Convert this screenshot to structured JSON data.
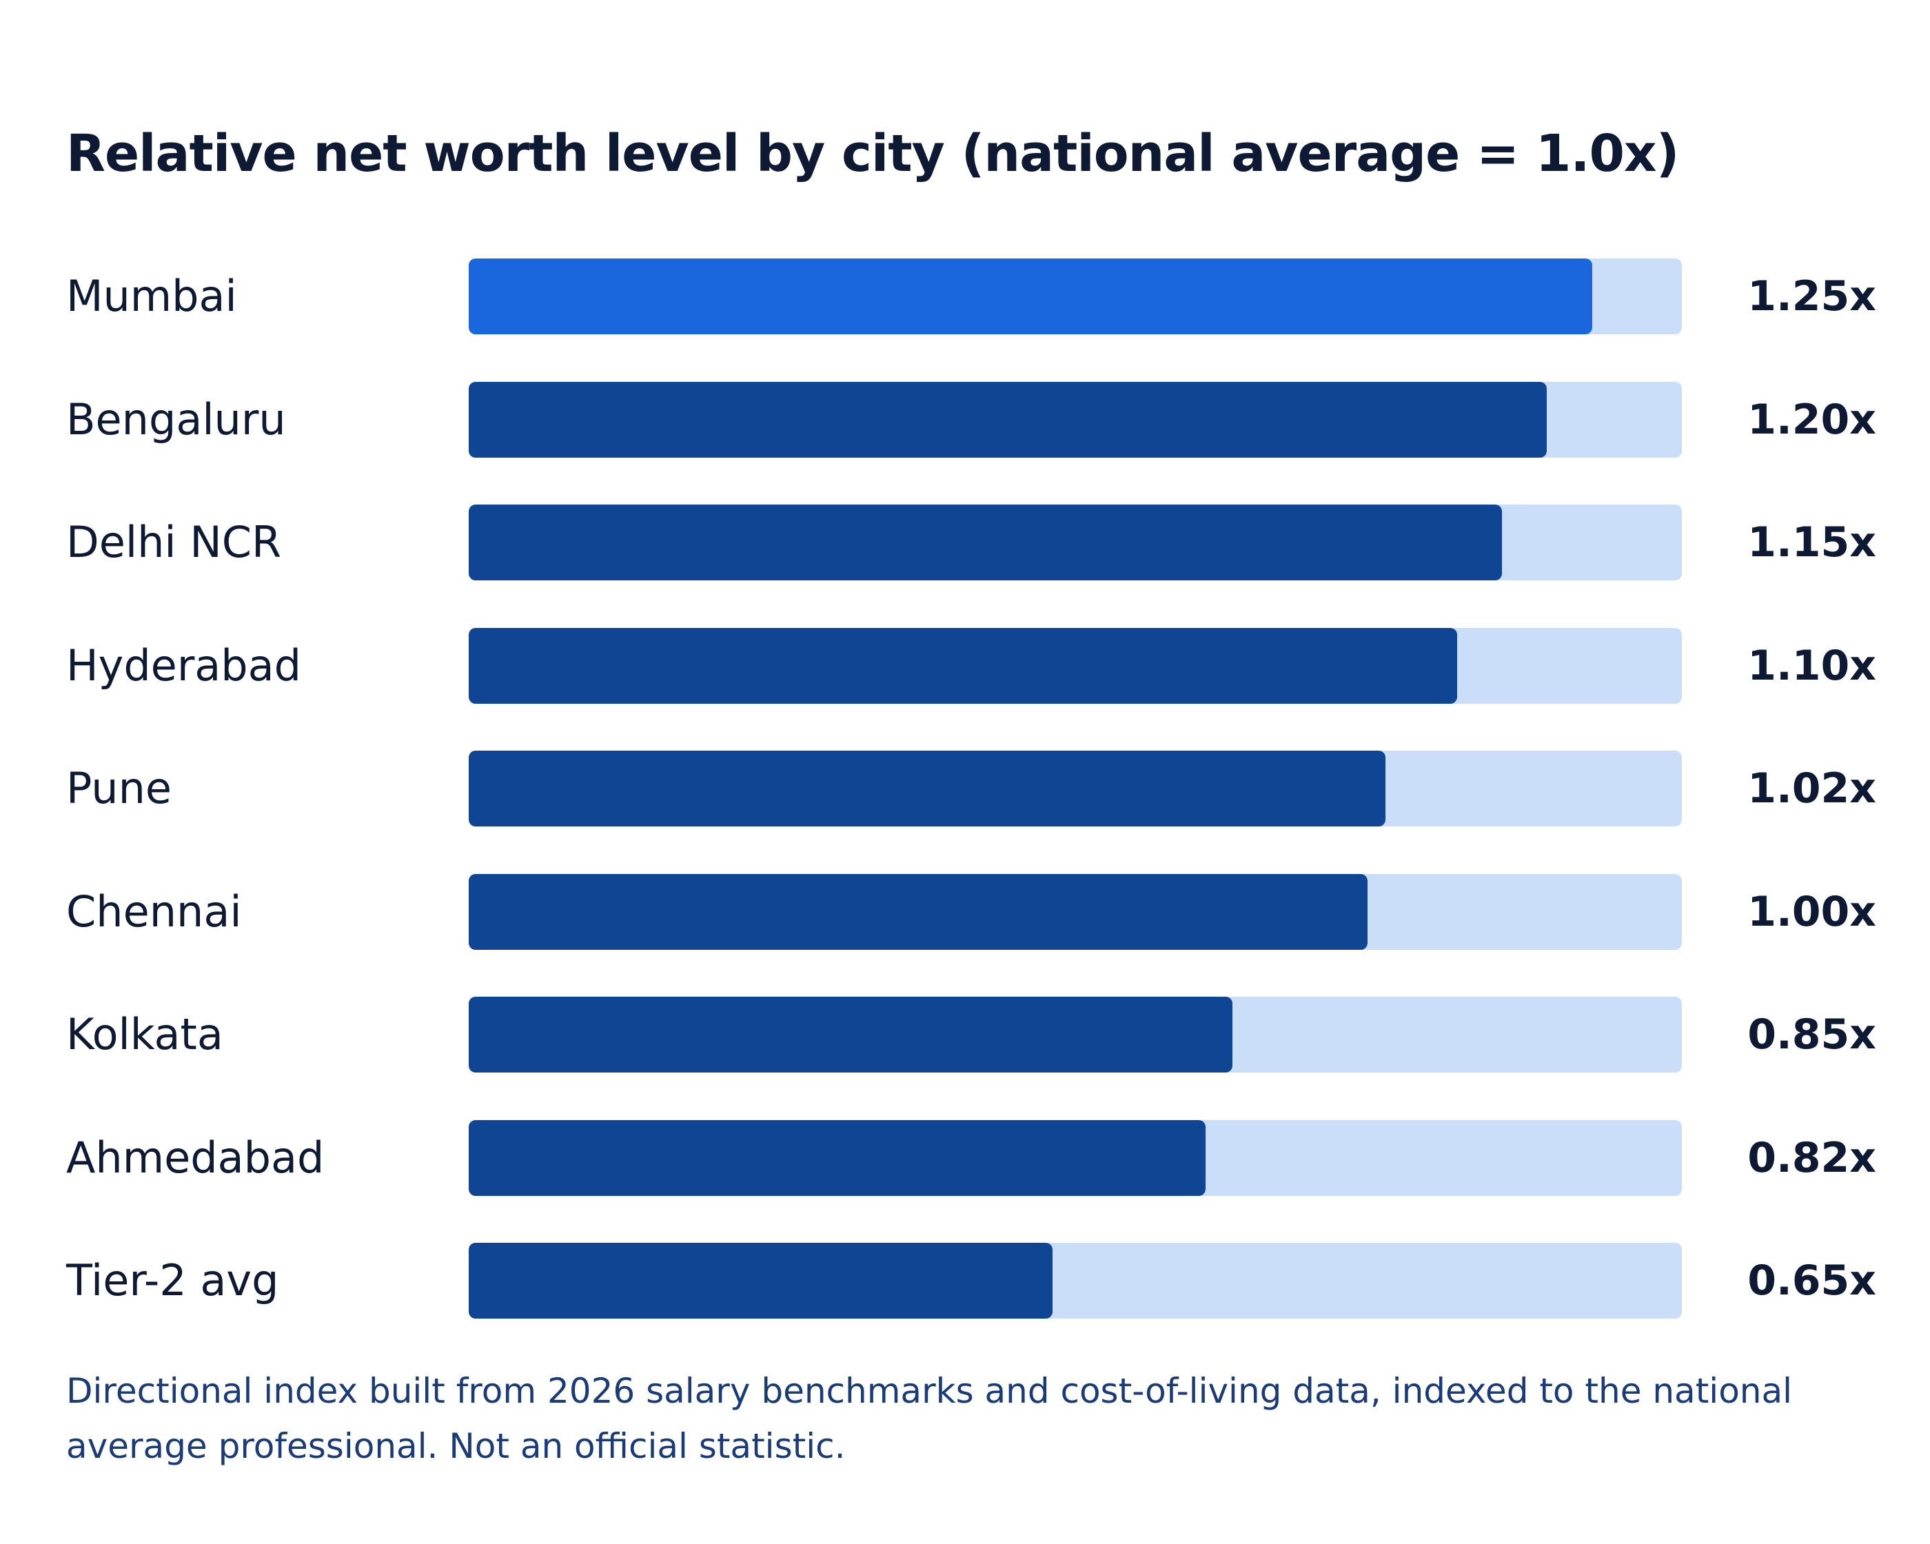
{
  "chart_data": {
    "type": "bar",
    "orientation": "horizontal",
    "title": "Relative net worth level by city (national average = 1.0x)",
    "categories": [
      "Mumbai",
      "Bengaluru",
      "Delhi NCR",
      "Hyderabad",
      "Pune",
      "Chennai",
      "Kolkata",
      "Ahmedabad",
      "Tier-2 avg"
    ],
    "values": [
      1.25,
      1.2,
      1.15,
      1.1,
      1.02,
      1.0,
      0.85,
      0.82,
      0.65
    ],
    "value_labels": [
      "1.25x",
      "1.20x",
      "1.15x",
      "1.10x",
      "1.02x",
      "1.00x",
      "0.85x",
      "0.82x",
      "0.65x"
    ],
    "xlim": [
      0,
      1.35
    ],
    "grid": false,
    "legend": "none",
    "highlight_category": "Mumbai",
    "colors": {
      "highlight": "#1a66dd",
      "bar": "#0f4592",
      "track": "#cadefa"
    }
  },
  "footnote": "Directional index built from 2026 salary benchmarks and cost-of-living data, indexed to the national average professional. Not an official statistic."
}
